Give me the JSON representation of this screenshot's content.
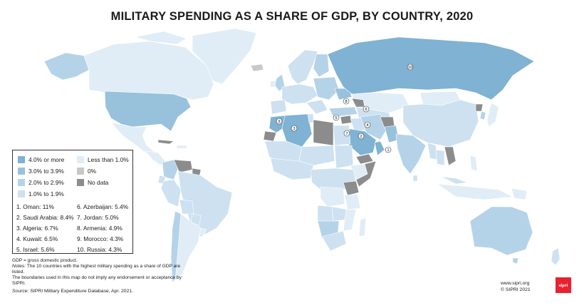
{
  "title": "MILITARY SPENDING AS A SHARE OF GDP, BY COUNTRY, 2020",
  "legend": {
    "categories": [
      {
        "label": "4.0% or more",
        "color": "#7fb2d3"
      },
      {
        "label": "3.0% to 3.9%",
        "color": "#98c1dc"
      },
      {
        "label": "2.0% to 2.9%",
        "color": "#b5d3e8"
      },
      {
        "label": "1.0% to 1.9%",
        "color": "#cde1f0"
      },
      {
        "label": "Less than 1.0%",
        "color": "#e0edf6"
      },
      {
        "label": "0%",
        "color": "#c8c8c8"
      },
      {
        "label": "No data",
        "color": "#8c8c8c"
      }
    ],
    "top10": [
      {
        "rank": "1",
        "text": "1. Oman: 11%"
      },
      {
        "rank": "2",
        "text": "2. Saudi Arabia: 8.4%"
      },
      {
        "rank": "3",
        "text": "3. Algeria: 6.7%"
      },
      {
        "rank": "4",
        "text": "4. Kuwait: 6.5%"
      },
      {
        "rank": "5",
        "text": "5. Israel: 5.6%"
      },
      {
        "rank": "6",
        "text": "6. Azerbaijan: 5.4%"
      },
      {
        "rank": "7",
        "text": "7. Jordan: 5.0%"
      },
      {
        "rank": "8",
        "text": "8. Armenia: 4.9%"
      },
      {
        "rank": "9",
        "text": "9. Morocco: 4.3%"
      },
      {
        "rank": "10",
        "text": "10. Russia: 4.3%"
      }
    ]
  },
  "notes": {
    "gdp": "GDP = gross domestic product.",
    "notes_label": "Notes:",
    "notes_text": "The 10 countries with the highest military spending as a share of GDP are listed.",
    "boundaries": "The boundaries used in this map do not imply any endorsement or acceptance by SIPRI."
  },
  "source": {
    "label": "Source:",
    "text": "SIPRI Military Expenditure Database, Apr. 2021."
  },
  "credit": {
    "url": "www.sipri.org",
    "copyright": "© SIPRI 2021",
    "logo": "sipri"
  },
  "map_markers": [
    "1",
    "2",
    "3",
    "4",
    "5",
    "6",
    "7",
    "8",
    "9",
    "10"
  ]
}
